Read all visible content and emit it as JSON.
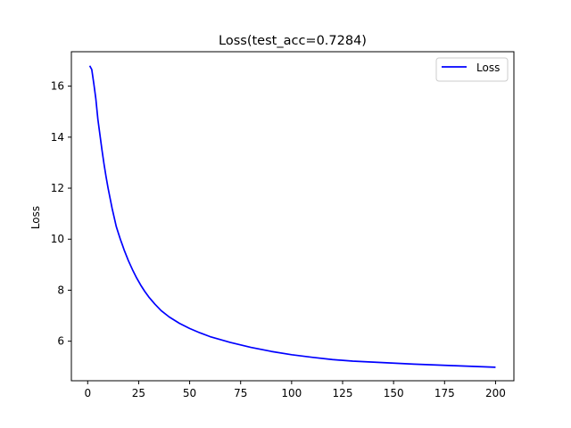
{
  "chart_data": {
    "type": "line",
    "title": "Loss(test_acc=0.7284)",
    "xlabel": "",
    "ylabel": "Loss",
    "xlim": [
      -8,
      209
    ],
    "ylim": [
      4.45,
      17.35
    ],
    "xticks": [
      0,
      25,
      50,
      75,
      100,
      125,
      150,
      175,
      200
    ],
    "yticks": [
      6,
      8,
      10,
      12,
      14,
      16
    ],
    "grid": false,
    "legend": {
      "position": "top-right",
      "entries": [
        "Loss"
      ]
    },
    "series": [
      {
        "name": "Loss",
        "color": "#0000ff",
        "x": [
          1,
          2,
          3,
          4,
          5,
          6,
          7,
          8,
          9,
          10,
          11,
          12,
          13,
          14,
          15,
          16,
          17,
          18,
          19,
          20,
          22,
          24,
          26,
          28,
          30,
          33,
          36,
          40,
          45,
          50,
          55,
          60,
          70,
          80,
          90,
          100,
          110,
          120,
          130,
          140,
          150,
          160,
          170,
          180,
          190,
          200
        ],
        "y": [
          16.8,
          16.65,
          16.1,
          15.5,
          14.7,
          14.1,
          13.5,
          12.95,
          12.45,
          12.0,
          11.6,
          11.2,
          10.85,
          10.5,
          10.25,
          10.0,
          9.78,
          9.55,
          9.35,
          9.15,
          8.8,
          8.48,
          8.2,
          7.95,
          7.73,
          7.45,
          7.2,
          6.95,
          6.7,
          6.5,
          6.33,
          6.18,
          5.95,
          5.76,
          5.6,
          5.47,
          5.37,
          5.28,
          5.22,
          5.18,
          5.14,
          5.1,
          5.07,
          5.04,
          5.01,
          4.98
        ]
      }
    ]
  }
}
